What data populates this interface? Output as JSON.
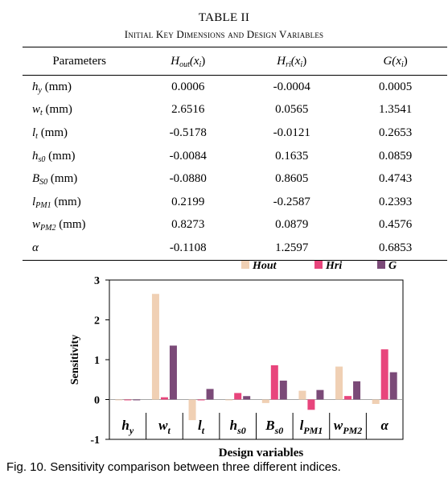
{
  "table": {
    "title": "TABLE II",
    "subtitle": "Initial Key Dimensions and Design Variables",
    "headers": {
      "param": "Parameters",
      "hout": {
        "main": "H",
        "sub": "out",
        "arg": "(x",
        "argsub": "i",
        "close": ")"
      },
      "hri": {
        "main": "H",
        "sub": "ri",
        "arg": "(x",
        "argsub": "i",
        "close": ")"
      },
      "g": {
        "main": "G",
        "sub": "",
        "arg": "(x",
        "argsub": "i",
        "close": ")"
      }
    },
    "rows": [
      {
        "sym": "h",
        "sub": "y",
        "unit": " (mm)",
        "hout": "0.0006",
        "hri": "-0.0004",
        "g": "0.0005"
      },
      {
        "sym": "w",
        "sub": "t",
        "unit": " (mm)",
        "hout": "2.6516",
        "hri": "0.0565",
        "g": "1.3541"
      },
      {
        "sym": "l",
        "sub": "t",
        "unit": " (mm)",
        "hout": "-0.5178",
        "hri": "-0.0121",
        "g": "0.2653"
      },
      {
        "sym": "h",
        "sub": "s0",
        "unit": " (mm)",
        "hout": "-0.0084",
        "hri": "0.1635",
        "g": "0.0859"
      },
      {
        "sym": "B",
        "sub": "S0",
        "unit": " (mm)",
        "hout": "-0.0880",
        "hri": "0.8605",
        "g": "0.4743"
      },
      {
        "sym": "l",
        "sub": "PM1",
        "unit": " (mm)",
        "hout": "0.2199",
        "hri": "-0.2587",
        "g": "0.2393"
      },
      {
        "sym": "w",
        "sub": "PM2",
        "unit": " (mm)",
        "hout": "0.8273",
        "hri": "0.0879",
        "g": "0.4576"
      },
      {
        "sym": "α",
        "sub": "",
        "unit": "",
        "hout": "-0.1108",
        "hri": "1.2597",
        "g": "0.6853"
      }
    ]
  },
  "chart_data": {
    "type": "bar",
    "title": "",
    "xlabel": "Design variables",
    "ylabel": "Sensitivity",
    "ylim": [
      -1,
      3
    ],
    "yticks": [
      "3",
      "2",
      "1",
      "0",
      "-1"
    ],
    "categories": [
      {
        "main": "h",
        "sub": "y"
      },
      {
        "main": "w",
        "sub": "t"
      },
      {
        "main": "l",
        "sub": "t"
      },
      {
        "main": "h",
        "sub": "s0"
      },
      {
        "main": "B",
        "sub": "s0"
      },
      {
        "main": "l",
        "sub": "PM1"
      },
      {
        "main": "w",
        "sub": "PM2"
      },
      {
        "main": "α",
        "sub": ""
      }
    ],
    "series": [
      {
        "name": "Hout",
        "color": "#f0d0b4",
        "values": [
          0.0006,
          2.6516,
          -0.5178,
          -0.0084,
          -0.088,
          0.2199,
          0.8273,
          -0.1108
        ]
      },
      {
        "name": "Hri",
        "color": "#e8457c",
        "values": [
          -0.0004,
          0.0565,
          -0.0121,
          0.1635,
          0.8605,
          -0.2587,
          0.0879,
          1.2597
        ]
      },
      {
        "name": "G",
        "color": "#7b4a78",
        "values": [
          0.0005,
          1.3541,
          0.2653,
          0.0859,
          0.4743,
          0.2393,
          0.4576,
          0.6853
        ]
      }
    ],
    "legend": "top"
  },
  "caption": "Fig. 10.  Sensitivity comparison between three different indices."
}
